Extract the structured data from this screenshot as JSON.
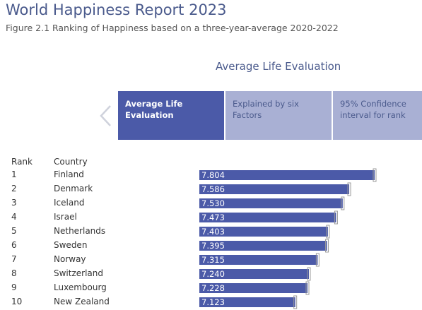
{
  "header": {
    "title": "World Happiness Report 2023",
    "subtitle": "Figure 2.1 Ranking of Happiness based on a three-year-average 2020-2022"
  },
  "section_title": "Average Life Evaluation",
  "tabs": [
    {
      "label": "Average Life Evaluation",
      "active": true
    },
    {
      "label": "Explained by six Factors",
      "active": false
    },
    {
      "label": "95% Confidence interval for rank",
      "active": false
    }
  ],
  "nav": {
    "prev_icon": "chevron-left-icon"
  },
  "table": {
    "rank_header": "Rank",
    "country_header": "Country"
  },
  "colors": {
    "bar": "#4b5aa8",
    "tab_active": "#4b5aa8",
    "tab_inactive": "#a9b0d4",
    "title": "#4a5a8c",
    "ci_marker": "#9a9a9a"
  },
  "chart_data": {
    "type": "bar",
    "orientation": "horizontal",
    "categories": [
      "Finland",
      "Denmark",
      "Iceland",
      "Israel",
      "Netherlands",
      "Sweden",
      "Norway",
      "Switzerland",
      "Luxembourg",
      "New Zealand"
    ],
    "ranks": [
      "1",
      "2",
      "3",
      "4",
      "5",
      "6",
      "7",
      "8",
      "9",
      "10"
    ],
    "values": [
      7.804,
      7.586,
      7.53,
      7.473,
      7.403,
      7.395,
      7.315,
      7.24,
      7.228,
      7.123
    ],
    "value_labels": [
      "7.804",
      "7.586",
      "7.530",
      "7.473",
      "7.403",
      "7.395",
      "7.315",
      "7.240",
      "7.228",
      "7.123"
    ],
    "xlim": [
      0,
      8
    ],
    "grid": false
  }
}
